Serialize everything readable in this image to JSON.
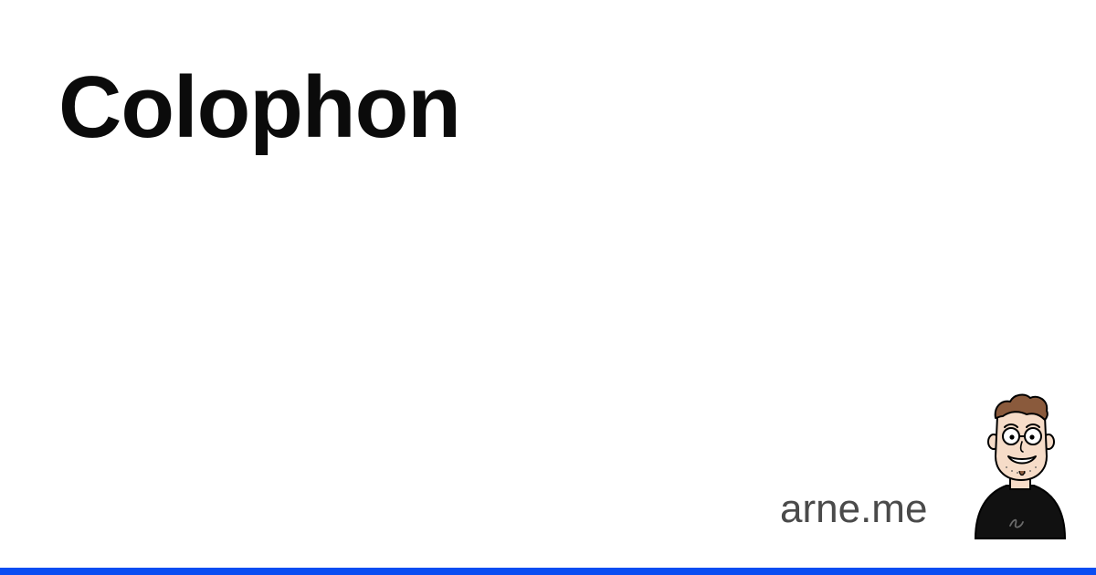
{
  "page": {
    "title": "Colophon",
    "site": "arne.me"
  },
  "avatar": {
    "icon": "cartoon-avatar-icon"
  },
  "colors": {
    "background": "#ffffff",
    "title": "#0b0b0b",
    "site": "#4a4a4a",
    "accent_bar": "#0a4df2",
    "hair": "#8a5a3c",
    "skin": "#f6dcc8",
    "shirt": "#111111"
  }
}
